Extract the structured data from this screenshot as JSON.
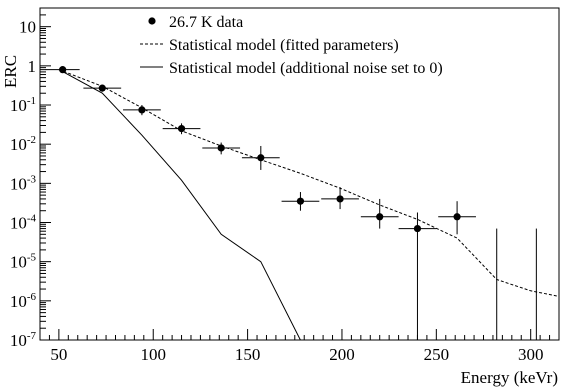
{
  "chart_data": {
    "type": "scatter",
    "title": "",
    "xlabel": "Energy (keVr)",
    "ylabel": "ERC",
    "xlim": [
      40,
      315
    ],
    "ylim": [
      1e-07,
      30
    ],
    "yscale": "log",
    "x_ticks": [
      {
        "value": 50,
        "label": "50"
      },
      {
        "value": 100,
        "label": "100"
      },
      {
        "value": 150,
        "label": "150"
      },
      {
        "value": 200,
        "label": "200"
      },
      {
        "value": 250,
        "label": "250"
      },
      {
        "value": 300,
        "label": "300"
      }
    ],
    "y_ticks": [
      {
        "value": 10,
        "base": "10",
        "exp": ""
      },
      {
        "value": 1,
        "base": "1",
        "exp": ""
      },
      {
        "value": 0.1,
        "base": "10",
        "exp": "-1"
      },
      {
        "value": 0.01,
        "base": "10",
        "exp": "-2"
      },
      {
        "value": 0.001,
        "base": "10",
        "exp": "-3"
      },
      {
        "value": 0.0001,
        "base": "10",
        "exp": "-4"
      },
      {
        "value": 1e-05,
        "base": "10",
        "exp": "-5"
      },
      {
        "value": 1e-06,
        "base": "10",
        "exp": "-6"
      },
      {
        "value": 1e-07,
        "base": "10",
        "exp": "-7"
      }
    ],
    "legend": {
      "placement": "top-right",
      "entries": [
        {
          "label": "26.7 K data",
          "style": "marker"
        },
        {
          "label": "Statistical model (fitted parameters)",
          "style": "dashed"
        },
        {
          "label": "Statistical model (additional noise set to 0)",
          "style": "solid"
        }
      ]
    },
    "data_points": [
      {
        "x": 52,
        "y": 0.8,
        "xerr": 9,
        "ylo": 0.7,
        "yhi": 0.9
      },
      {
        "x": 73,
        "y": 0.27,
        "xerr": 10,
        "ylo": 0.22,
        "yhi": 0.33
      },
      {
        "x": 94,
        "y": 0.075,
        "xerr": 10,
        "ylo": 0.055,
        "yhi": 0.1
      },
      {
        "x": 115,
        "y": 0.025,
        "xerr": 10,
        "ylo": 0.018,
        "yhi": 0.034
      },
      {
        "x": 136,
        "y": 0.008,
        "xerr": 10,
        "ylo": 0.0055,
        "yhi": 0.011
      },
      {
        "x": 157,
        "y": 0.0045,
        "xerr": 10,
        "ylo": 0.0022,
        "yhi": 0.009
      },
      {
        "x": 178,
        "y": 0.00035,
        "xerr": 10,
        "ylo": 0.0002,
        "yhi": 0.0006
      },
      {
        "x": 199,
        "y": 0.0004,
        "xerr": 10,
        "ylo": 0.00022,
        "yhi": 0.0008
      },
      {
        "x": 220,
        "y": 0.00014,
        "xerr": 10,
        "ylo": 7e-05,
        "yhi": 0.0004
      },
      {
        "x": 240,
        "y": 7e-05,
        "xerr": 10,
        "ylo": 1e-07,
        "yhi": 0.00018
      },
      {
        "x": 261,
        "y": 0.00014,
        "xerr": 10,
        "ylo": 5e-05,
        "yhi": 0.00035
      },
      {
        "x": 282,
        "y": null,
        "xerr": 0,
        "ylo": 1e-07,
        "yhi": 7e-05
      },
      {
        "x": 303,
        "y": null,
        "xerr": 0,
        "ylo": 1e-07,
        "yhi": 7e-05
      }
    ],
    "series": [
      {
        "style": "dashed",
        "x": [
          50,
          73,
          94,
          115,
          136,
          157,
          178,
          199,
          220,
          240,
          261,
          282,
          300,
          315
        ],
        "y": [
          0.8,
          0.3,
          0.085,
          0.022,
          0.009,
          0.004,
          0.0018,
          0.00075,
          0.00028,
          0.00012,
          4e-05,
          3.5e-06,
          1.8e-06,
          1.3e-06
        ]
      },
      {
        "style": "solid",
        "x": [
          50,
          73,
          94,
          115,
          136,
          157,
          178
        ],
        "y": [
          0.8,
          0.2,
          0.017,
          0.0012,
          5e-05,
          1e-05,
          1e-07
        ]
      }
    ]
  }
}
